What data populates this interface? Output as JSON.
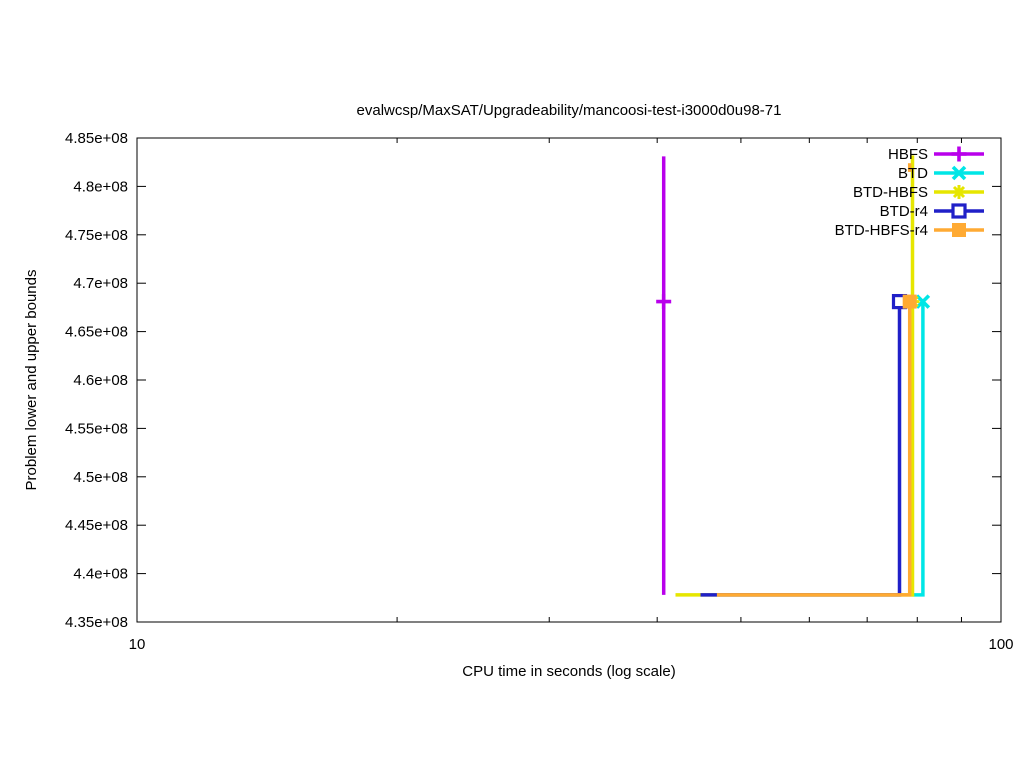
{
  "chart_data": {
    "type": "line",
    "title": "evalwcsp/MaxSAT/Upgradeability/mancoosi-test-i3000d0u98-71",
    "xlabel": "CPU time in seconds (log scale)",
    "ylabel": "Problem lower and upper bounds",
    "x_scale": "log",
    "xlim": [
      10,
      100
    ],
    "ylim": [
      435000000,
      485000000
    ],
    "grid": false,
    "legend_position": "top-right",
    "background_color": "#ffffff",
    "axis_color": "#000000",
    "x_major_ticks": [
      {
        "value": 10,
        "label": "10"
      },
      {
        "value": 100,
        "label": "100"
      }
    ],
    "x_minor_ticks": [
      20,
      30,
      40,
      50,
      60,
      70,
      80,
      90
    ],
    "y_ticks": [
      {
        "value": 435000000,
        "label": "4.35e+08"
      },
      {
        "value": 440000000,
        "label": "4.4e+08"
      },
      {
        "value": 445000000,
        "label": "4.45e+08"
      },
      {
        "value": 450000000,
        "label": "4.5e+08"
      },
      {
        "value": 455000000,
        "label": "4.55e+08"
      },
      {
        "value": 460000000,
        "label": "4.6e+08"
      },
      {
        "value": 465000000,
        "label": "4.65e+08"
      },
      {
        "value": 470000000,
        "label": "4.7e+08"
      },
      {
        "value": 475000000,
        "label": "4.75e+08"
      },
      {
        "value": 480000000,
        "label": "4.8e+08"
      },
      {
        "value": 485000000,
        "label": "4.85e+08"
      }
    ],
    "series": [
      {
        "name": "HBFS",
        "color": "#b900eb",
        "marker": "plus",
        "lines": [
          [
            [
              40.7,
              437800000
            ],
            [
              40.7,
              483100000
            ]
          ]
        ],
        "marker_points": [
          [
            40.7,
            468100000
          ]
        ]
      },
      {
        "name": "BTD",
        "color": "#00e6e6",
        "marker": "cross",
        "lines": [
          [
            [
              78.8,
              437800000
            ],
            [
              81.2,
              437800000
            ],
            [
              81.2,
              468100000
            ]
          ]
        ],
        "marker_points": [
          [
            81.2,
            468100000
          ]
        ]
      },
      {
        "name": "BTD-HBFS",
        "color": "#e6e600",
        "marker": "asterisk",
        "lines": [
          [
            [
              42.0,
              437800000
            ],
            [
              79.0,
              437800000
            ],
            [
              79.0,
              483200000
            ]
          ]
        ],
        "marker_points": [
          [
            79.0,
            468100000
          ]
        ]
      },
      {
        "name": "BTD-r4",
        "color": "#2020c8",
        "marker": "square-open",
        "lines": [
          [
            [
              44.9,
              437800000
            ],
            [
              76.3,
              437800000
            ],
            [
              76.3,
              468100000
            ]
          ]
        ],
        "marker_points": [
          [
            76.3,
            468100000
          ]
        ]
      },
      {
        "name": "BTD-HBFS-r4",
        "color": "#ffaa33",
        "marker": "square-filled",
        "lines": [
          [
            [
              46.9,
              437800000
            ],
            [
              78.4,
              437800000
            ],
            [
              78.4,
              468100000
            ]
          ],
          [
            [
              78.4,
              481500000
            ],
            [
              78.4,
              482400000
            ]
          ]
        ],
        "marker_points": [
          [
            78.4,
            468100000
          ]
        ]
      }
    ]
  }
}
